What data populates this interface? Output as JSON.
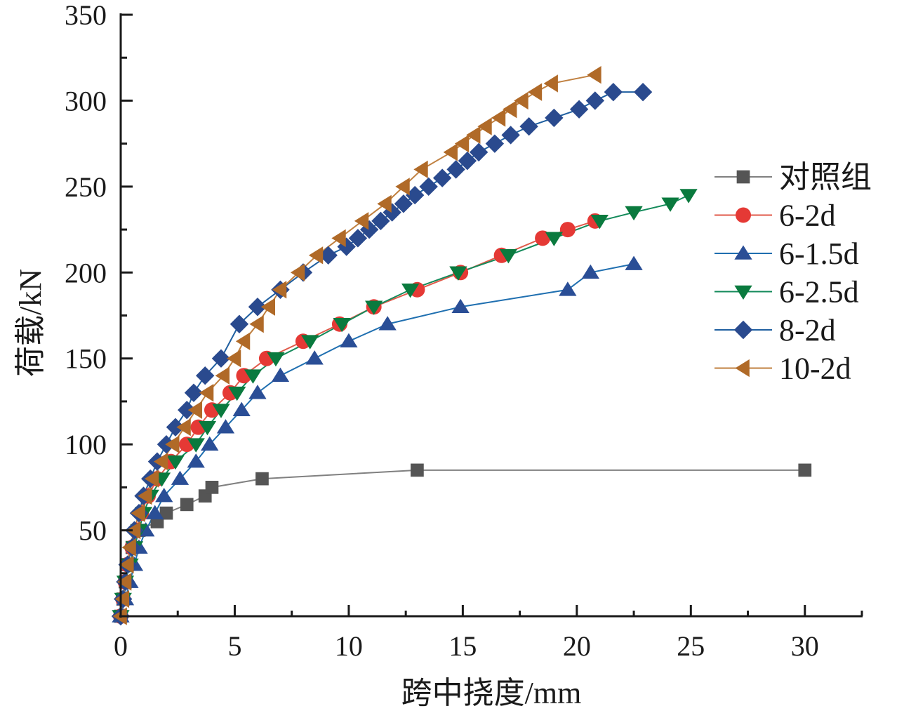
{
  "chart_data": {
    "type": "line",
    "title": "",
    "xlabel": "跨中挠度/mm",
    "ylabel": "荷载/kN",
    "xlim": [
      0,
      32.5
    ],
    "ylim": [
      0,
      350
    ],
    "xticks": [
      0,
      5,
      10,
      15,
      20,
      25,
      30
    ],
    "yticks": [
      50,
      100,
      150,
      200,
      250,
      300,
      350
    ],
    "xtick_labels": [
      "0",
      "5",
      "10",
      "15",
      "20",
      "25",
      "30"
    ],
    "ytick_labels": [
      "50",
      "100",
      "150",
      "200",
      "250",
      "300",
      "350"
    ],
    "grid": false,
    "legend_position": "right",
    "series": [
      {
        "name": "对照组",
        "color": "#555555",
        "line_color": "#808080",
        "marker": "square",
        "x": [
          0,
          0.1,
          0.2,
          0.3,
          0.5,
          0.8,
          1.6,
          2.0,
          2.9,
          3.7,
          4.0,
          6.2,
          13.0,
          30.0
        ],
        "y": [
          0,
          10,
          20,
          30,
          40,
          50,
          55,
          60,
          65,
          70,
          75,
          80,
          85,
          85
        ]
      },
      {
        "name": "6-2d",
        "color": "#e53935",
        "line_color": "#e05a4a",
        "marker": "circle",
        "x": [
          0,
          0.1,
          0.2,
          0.3,
          0.5,
          0.7,
          0.9,
          1.2,
          1.6,
          2.2,
          2.9,
          3.4,
          4.0,
          4.8,
          5.4,
          6.4,
          8.0,
          9.6,
          11.1,
          13.0,
          14.9,
          16.7,
          18.5,
          19.6,
          20.8
        ],
        "y": [
          0,
          10,
          20,
          30,
          40,
          50,
          60,
          70,
          80,
          90,
          100,
          110,
          120,
          130,
          140,
          150,
          160,
          170,
          180,
          190,
          200,
          210,
          220,
          225,
          230
        ]
      },
      {
        "name": "6-1.5d",
        "color": "#2a4e96",
        "line_color": "#1f6fb0",
        "marker": "triangle-up",
        "x": [
          0,
          0.2,
          0.4,
          0.6,
          0.8,
          1.1,
          1.5,
          1.9,
          2.6,
          3.3,
          3.9,
          4.6,
          5.3,
          6.0,
          7.0,
          8.5,
          10.0,
          11.7,
          14.9,
          19.6,
          20.6,
          22.5
        ],
        "y": [
          0,
          10,
          20,
          30,
          40,
          50,
          60,
          70,
          80,
          90,
          100,
          110,
          120,
          130,
          140,
          150,
          160,
          170,
          180,
          190,
          200,
          205
        ]
      },
      {
        "name": "6-2.5d",
        "color": "#0a7a3e",
        "line_color": "#138a5a",
        "marker": "triangle-down",
        "x": [
          0,
          0.1,
          0.2,
          0.4,
          0.6,
          0.8,
          1.0,
          1.3,
          1.8,
          2.4,
          3.3,
          3.8,
          4.4,
          5.1,
          5.8,
          6.8,
          8.3,
          9.7,
          11.1,
          12.7,
          14.8,
          17.0,
          19.0,
          21.0,
          22.5,
          24.1,
          24.9
        ],
        "y": [
          0,
          10,
          20,
          30,
          40,
          50,
          60,
          70,
          80,
          90,
          100,
          110,
          120,
          130,
          140,
          150,
          160,
          170,
          180,
          190,
          200,
          210,
          220,
          230,
          235,
          240,
          245
        ]
      },
      {
        "name": "8-2d",
        "color": "#2a4a8e",
        "line_color": "#1f5fa0",
        "marker": "diamond",
        "x": [
          0,
          0.1,
          0.2,
          0.3,
          0.5,
          0.6,
          0.8,
          1.0,
          1.3,
          1.6,
          2.0,
          2.4,
          2.9,
          3.2,
          3.7,
          4.4,
          5.2,
          6.0,
          7.0,
          8.0,
          9.1,
          9.9,
          10.4,
          10.9,
          11.4,
          11.9,
          12.4,
          12.9,
          13.5,
          14.1,
          14.7,
          15.2,
          15.7,
          16.4,
          17.1,
          17.9,
          19.0,
          20.1,
          20.8,
          21.6,
          22.9
        ],
        "y": [
          0,
          10,
          20,
          30,
          40,
          50,
          60,
          70,
          80,
          90,
          100,
          110,
          120,
          130,
          140,
          150,
          170,
          180,
          190,
          200,
          210,
          215,
          220,
          225,
          230,
          235,
          240,
          245,
          250,
          255,
          260,
          265,
          270,
          275,
          280,
          285,
          290,
          295,
          300,
          305,
          305
        ]
      },
      {
        "name": "10-2d",
        "color": "#b06a28",
        "line_color": "#c08040",
        "marker": "triangle-left",
        "x": [
          0,
          0.1,
          0.2,
          0.3,
          0.4,
          0.6,
          0.8,
          1.1,
          1.4,
          1.8,
          2.3,
          2.8,
          3.3,
          3.8,
          4.5,
          5.0,
          5.4,
          6.0,
          6.5,
          7.0,
          7.8,
          8.6,
          9.6,
          10.6,
          11.6,
          12.4,
          13.2,
          14.5,
          15.0,
          15.5,
          16.0,
          16.6,
          17.1,
          17.6,
          18.2,
          18.9,
          20.8
        ],
        "y": [
          0,
          10,
          20,
          30,
          40,
          50,
          60,
          70,
          80,
          90,
          100,
          110,
          120,
          130,
          140,
          150,
          160,
          170,
          180,
          190,
          200,
          210,
          220,
          230,
          240,
          250,
          260,
          270,
          275,
          280,
          285,
          290,
          295,
          300,
          305,
          310,
          315
        ]
      }
    ]
  }
}
